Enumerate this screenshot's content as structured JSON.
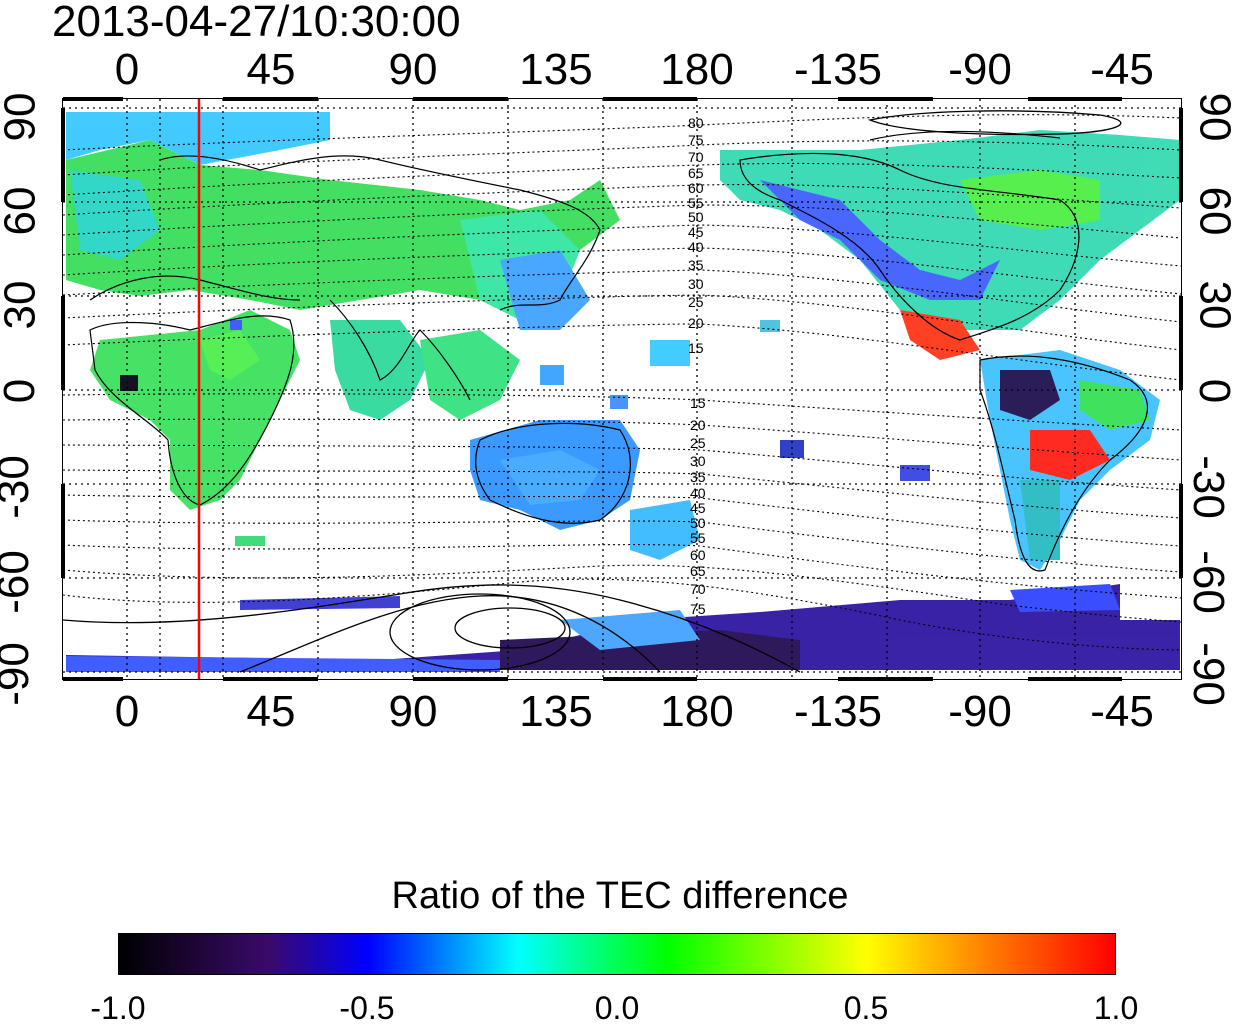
{
  "timestamp": "2013-04-27/10:30:00",
  "map": {
    "lon_ticks": [
      "0",
      "45",
      "90",
      "135",
      "180",
      "-135",
      "-90",
      "-45"
    ],
    "lat_ticks": [
      "90",
      "60",
      "30",
      "0",
      "-30",
      "-60",
      "-90"
    ],
    "contour_labels_north": [
      "80",
      "75",
      "70",
      "65",
      "60",
      "55",
      "50",
      "45",
      "40",
      "35",
      "30",
      "25",
      "20",
      "15"
    ],
    "contour_labels_south": [
      "15",
      "20",
      "25",
      "30",
      "35",
      "40",
      "45",
      "50",
      "55",
      "60",
      "65",
      "70",
      "75"
    ],
    "marker_line_color": "#ff0000",
    "marker_longitude": 24
  },
  "colorbar": {
    "title": "Ratio of the TEC difference",
    "labels": [
      "-1.0",
      "-0.5",
      "0.0",
      "0.5",
      "1.0"
    ],
    "range": [
      -1.0,
      1.0
    ]
  }
}
